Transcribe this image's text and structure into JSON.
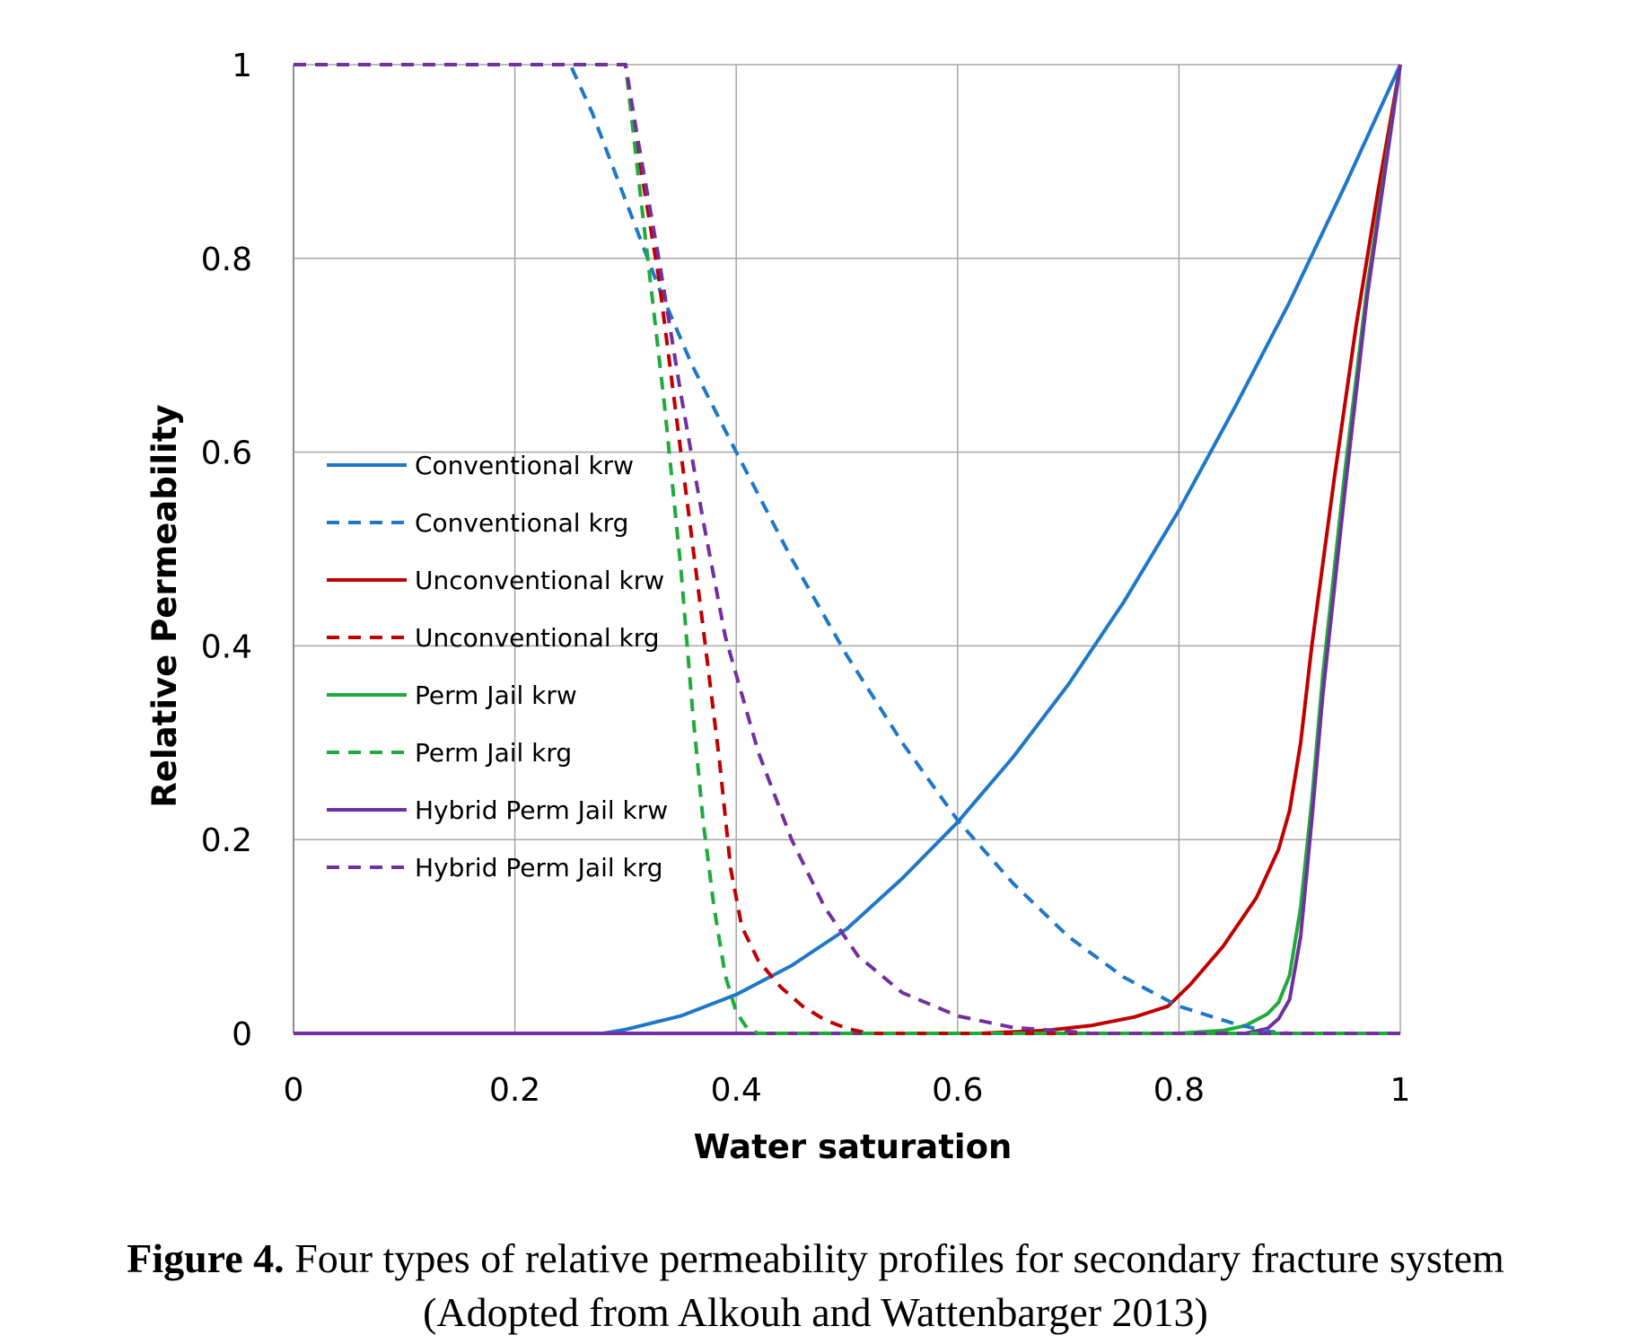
{
  "chart_data": {
    "type": "line",
    "xlabel": "Water saturation",
    "ylabel": "Relative Permeability",
    "xlim": [
      0,
      1
    ],
    "ylim": [
      0,
      1
    ],
    "xticks": [
      "0",
      "0.2",
      "0.4",
      "0.6",
      "0.8",
      "1"
    ],
    "yticks": [
      "0",
      "0.2",
      "0.4",
      "0.6",
      "0.8",
      "1"
    ],
    "grid": true,
    "legend_position": "center-left",
    "series": [
      {
        "name": "Conventional krw",
        "color": "#1f77c8",
        "dash": "solid",
        "points": [
          [
            0,
            0
          ],
          [
            0.28,
            0
          ],
          [
            0.3,
            0.004
          ],
          [
            0.35,
            0.018
          ],
          [
            0.4,
            0.04
          ],
          [
            0.45,
            0.07
          ],
          [
            0.5,
            0.108
          ],
          [
            0.55,
            0.16
          ],
          [
            0.6,
            0.218
          ],
          [
            0.65,
            0.285
          ],
          [
            0.7,
            0.36
          ],
          [
            0.75,
            0.445
          ],
          [
            0.8,
            0.54
          ],
          [
            0.85,
            0.645
          ],
          [
            0.9,
            0.755
          ],
          [
            0.95,
            0.875
          ],
          [
            1.0,
            1.0
          ]
        ]
      },
      {
        "name": "Conventional krg",
        "color": "#1f77c8",
        "dash": "dashed",
        "points": [
          [
            0,
            1
          ],
          [
            0.25,
            1
          ],
          [
            0.27,
            0.95
          ],
          [
            0.3,
            0.86
          ],
          [
            0.33,
            0.77
          ],
          [
            0.36,
            0.69
          ],
          [
            0.4,
            0.6
          ],
          [
            0.45,
            0.49
          ],
          [
            0.5,
            0.39
          ],
          [
            0.55,
            0.3
          ],
          [
            0.6,
            0.22
          ],
          [
            0.65,
            0.155
          ],
          [
            0.7,
            0.1
          ],
          [
            0.75,
            0.058
          ],
          [
            0.8,
            0.028
          ],
          [
            0.85,
            0.01
          ],
          [
            0.88,
            0.002
          ],
          [
            0.9,
            0
          ],
          [
            1.0,
            0
          ]
        ]
      },
      {
        "name": "Unconventional krw",
        "color": "#c00000",
        "dash": "solid",
        "points": [
          [
            0,
            0
          ],
          [
            0.62,
            0
          ],
          [
            0.68,
            0.003
          ],
          [
            0.72,
            0.008
          ],
          [
            0.76,
            0.017
          ],
          [
            0.79,
            0.028
          ],
          [
            0.81,
            0.05
          ],
          [
            0.84,
            0.09
          ],
          [
            0.87,
            0.14
          ],
          [
            0.89,
            0.19
          ],
          [
            0.9,
            0.23
          ],
          [
            0.91,
            0.3
          ],
          [
            0.92,
            0.4
          ],
          [
            0.94,
            0.57
          ],
          [
            0.96,
            0.73
          ],
          [
            0.98,
            0.87
          ],
          [
            1.0,
            1.0
          ]
        ]
      },
      {
        "name": "Unconventional krg",
        "color": "#c00000",
        "dash": "dashed",
        "points": [
          [
            0,
            1
          ],
          [
            0.3,
            1
          ],
          [
            0.31,
            0.92
          ],
          [
            0.33,
            0.78
          ],
          [
            0.35,
            0.6
          ],
          [
            0.37,
            0.42
          ],
          [
            0.385,
            0.28
          ],
          [
            0.395,
            0.17
          ],
          [
            0.405,
            0.11
          ],
          [
            0.42,
            0.075
          ],
          [
            0.44,
            0.048
          ],
          [
            0.46,
            0.028
          ],
          [
            0.48,
            0.014
          ],
          [
            0.5,
            0.005
          ],
          [
            0.52,
            0
          ],
          [
            1.0,
            0
          ]
        ]
      },
      {
        "name": "Perm Jail krw",
        "color": "#1faa3c",
        "dash": "solid",
        "points": [
          [
            0,
            0
          ],
          [
            0.8,
            0
          ],
          [
            0.84,
            0.003
          ],
          [
            0.86,
            0.008
          ],
          [
            0.88,
            0.02
          ],
          [
            0.89,
            0.032
          ],
          [
            0.9,
            0.06
          ],
          [
            0.91,
            0.13
          ],
          [
            0.92,
            0.24
          ],
          [
            0.93,
            0.37
          ],
          [
            0.95,
            0.58
          ],
          [
            0.97,
            0.77
          ],
          [
            1.0,
            1.0
          ]
        ]
      },
      {
        "name": "Perm Jail krg",
        "color": "#1faa3c",
        "dash": "dashed",
        "points": [
          [
            0,
            1
          ],
          [
            0.3,
            1
          ],
          [
            0.31,
            0.9
          ],
          [
            0.32,
            0.8
          ],
          [
            0.335,
            0.65
          ],
          [
            0.35,
            0.48
          ],
          [
            0.36,
            0.34
          ],
          [
            0.37,
            0.22
          ],
          [
            0.38,
            0.13
          ],
          [
            0.39,
            0.06
          ],
          [
            0.4,
            0.022
          ],
          [
            0.41,
            0.005
          ],
          [
            0.42,
            0
          ],
          [
            1.0,
            0
          ]
        ]
      },
      {
        "name": "Hybrid Perm Jail krw",
        "color": "#7030a0",
        "dash": "solid",
        "points": [
          [
            0,
            0
          ],
          [
            0.86,
            0
          ],
          [
            0.88,
            0.005
          ],
          [
            0.89,
            0.015
          ],
          [
            0.9,
            0.035
          ],
          [
            0.91,
            0.1
          ],
          [
            0.92,
            0.22
          ],
          [
            0.93,
            0.35
          ],
          [
            0.95,
            0.56
          ],
          [
            0.97,
            0.76
          ],
          [
            1.0,
            1.0
          ]
        ]
      },
      {
        "name": "Hybrid Perm Jail krg",
        "color": "#7030a0",
        "dash": "dashed",
        "points": [
          [
            0,
            1
          ],
          [
            0.3,
            1
          ],
          [
            0.31,
            0.93
          ],
          [
            0.33,
            0.8
          ],
          [
            0.35,
            0.66
          ],
          [
            0.37,
            0.53
          ],
          [
            0.39,
            0.41
          ],
          [
            0.42,
            0.29
          ],
          [
            0.45,
            0.2
          ],
          [
            0.48,
            0.13
          ],
          [
            0.51,
            0.08
          ],
          [
            0.55,
            0.042
          ],
          [
            0.6,
            0.018
          ],
          [
            0.65,
            0.006
          ],
          [
            0.7,
            0.002
          ],
          [
            0.72,
            0
          ],
          [
            1.0,
            0
          ]
        ]
      }
    ]
  },
  "caption": {
    "label": "Figure 4.",
    "text": " Four types of relative permeability profiles for secondary fracture system",
    "line2": "(Adopted from Alkouh and Wattenbarger 2013)"
  }
}
